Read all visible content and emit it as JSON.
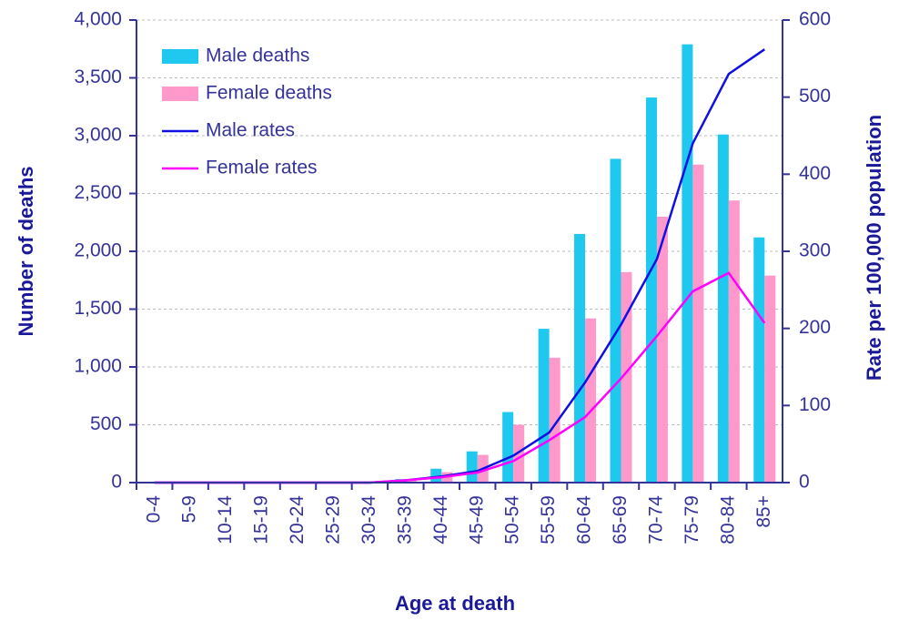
{
  "chart_data": {
    "type": "bar",
    "x_label": "Age at death",
    "y_label": "Number of deaths",
    "y2_label": "Rate per 100,000 population",
    "categories": [
      "0-4",
      "5-9",
      "10-14",
      "15-19",
      "20-24",
      "25-29",
      "30-34",
      "35-39",
      "40-44",
      "45-49",
      "50-54",
      "55-59",
      "60-64",
      "65-69",
      "70-74",
      "75-79",
      "80-84",
      "85+"
    ],
    "series": [
      {
        "name": "Male deaths",
        "type": "bar",
        "color": "#1ec8ee",
        "values": [
          0,
          0,
          0,
          0,
          0,
          0,
          0,
          30,
          120,
          270,
          610,
          1330,
          2150,
          2800,
          3330,
          3790,
          3010,
          2120
        ]
      },
      {
        "name": "Female deaths",
        "type": "bar",
        "color": "#ff99cc",
        "values": [
          0,
          0,
          0,
          0,
          0,
          0,
          0,
          20,
          90,
          240,
          500,
          1080,
          1420,
          1820,
          2300,
          2750,
          2440,
          1790
        ]
      },
      {
        "name": "Male rates",
        "type": "line",
        "axis": "y2",
        "color": "#1010e0",
        "values": [
          0,
          0,
          0,
          0,
          0,
          0,
          0,
          3,
          8,
          15,
          35,
          65,
          130,
          205,
          290,
          440,
          530,
          562
        ]
      },
      {
        "name": "Female rates",
        "type": "line",
        "axis": "y2",
        "color": "#ff00ff",
        "values": [
          0,
          0,
          0,
          0,
          0,
          0,
          0,
          3,
          7,
          13,
          28,
          55,
          85,
          135,
          190,
          248,
          272,
          207
        ]
      }
    ],
    "ylim": [
      0,
      4000
    ],
    "yticks": [
      0,
      500,
      {
        "value": 1000,
        "label": "1,000"
      },
      {
        "value": 1500,
        "label": "1,500"
      },
      {
        "value": 2000,
        "label": "2,000"
      },
      {
        "value": 2500,
        "label": "2,500"
      },
      {
        "value": 3000,
        "label": "3,000"
      },
      {
        "value": 3500,
        "label": "3,500"
      },
      {
        "value": 4000,
        "label": "4,000"
      }
    ],
    "y2lim": [
      0,
      600
    ],
    "y2ticks": [
      0,
      100,
      200,
      300,
      400,
      500,
      600
    ],
    "grid": true,
    "legend": "top-left"
  }
}
